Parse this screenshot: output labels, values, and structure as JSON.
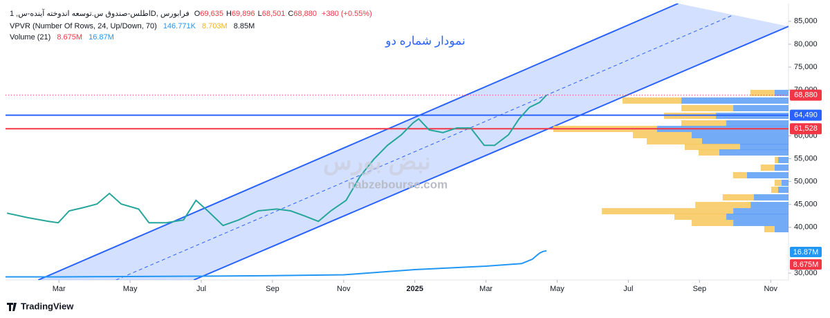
{
  "chart_data": {
    "type": "line",
    "symbol": "اطلس-صندوق س.توسعه اندوخته آینده-س, 1D, فرابورس",
    "ohlc": [
      {
        "key": "O",
        "value": "69,635"
      },
      {
        "key": "H",
        "value": "69,896"
      },
      {
        "key": "L",
        "value": "68,501"
      },
      {
        "key": "C",
        "value": "68,880"
      }
    ],
    "change": "+380 (+0.55%)",
    "vpvr_title": "VPVR (Number Of Rows, 24, Up/Down, 70)",
    "vpvr_values": [
      "146.771K",
      "8.703M",
      "8.85M"
    ],
    "volume_title": "Volume (21)",
    "volume_values": [
      "8.675M",
      "16.87M"
    ],
    "annotation": "نمودار شماره دو",
    "watermark": "nabzebourse.com",
    "watermark_logo": "نبض بورس",
    "brand": "TradingView",
    "xlim": [
      -1.5,
      20.5
    ],
    "xticks": [
      {
        "value": 0,
        "label": "Mar"
      },
      {
        "value": 2,
        "label": "May"
      },
      {
        "value": 4,
        "label": "Jul"
      },
      {
        "value": 6,
        "label": "Sep"
      },
      {
        "value": 8,
        "label": "Nov"
      },
      {
        "value": 10,
        "label": "2025"
      },
      {
        "value": 12,
        "label": "Mar"
      },
      {
        "value": 14,
        "label": "May"
      },
      {
        "value": 16,
        "label": "Jul"
      },
      {
        "value": 18,
        "label": "Sep"
      },
      {
        "value": 20,
        "label": "Nov"
      }
    ],
    "ylim": [
      28500,
      88900
    ],
    "yticks": [
      {
        "value": 30000,
        "label": "30,000"
      },
      {
        "value": 40000,
        "label": "40,000"
      },
      {
        "value": 45000,
        "label": "45,000"
      },
      {
        "value": 50000,
        "label": "50,000"
      },
      {
        "value": 55000,
        "label": "55,000"
      },
      {
        "value": 60000,
        "label": "60,000"
      },
      {
        "value": 70000,
        "label": "70,000"
      },
      {
        "value": 75000,
        "label": "75,000"
      },
      {
        "value": 80000,
        "label": "80,000"
      },
      {
        "value": 85000,
        "label": "85,000"
      }
    ],
    "y2lim": [
      0,
      160
    ],
    "series": [
      {
        "name": "Close",
        "color": "#26a69a",
        "x": [
          -1.46,
          -0.87,
          -0.29,
          -0.02,
          0.29,
          0.68,
          1.07,
          1.42,
          1.75,
          2.24,
          2.53,
          3.01,
          3.5,
          3.85,
          4.18,
          4.61,
          5.05,
          5.6,
          6.12,
          6.51,
          6.9,
          7.29,
          7.64,
          8.07,
          8.46,
          8.85,
          9.23,
          9.62,
          9.95,
          10.11,
          10.4,
          10.79,
          11.18,
          11.57,
          11.95,
          12.24,
          12.63,
          12.93,
          13.22,
          13.51,
          13.7
        ],
        "values": [
          43100,
          42100,
          41300,
          41000,
          43600,
          44300,
          45100,
          47400,
          45100,
          44000,
          41000,
          41000,
          41600,
          45900,
          43600,
          40400,
          41600,
          43600,
          44000,
          43600,
          42500,
          41300,
          43600,
          45900,
          51100,
          54900,
          57900,
          60200,
          62800,
          63700,
          61300,
          60700,
          61700,
          61700,
          57900,
          57900,
          60200,
          63700,
          66200,
          67300,
          68880
        ]
      },
      {
        "name": "Volume MA",
        "color": "#2196f3",
        "axis": "y2",
        "x": [
          -1.5,
          0,
          2,
          4,
          6,
          8,
          9,
          10,
          11,
          12,
          13,
          13.3,
          13.5,
          13.6,
          13.7
        ],
        "values": [
          1.8,
          1.8,
          2.0,
          2.2,
          2.5,
          3,
          4.5,
          6,
          7,
          8,
          9.5,
          12,
          15.5,
          16.5,
          16.87
        ]
      }
    ],
    "channel": {
      "color": "#2962ff",
      "fill": "#2962ff",
      "upper": {
        "x": [
          -0.58,
          17.4
        ],
        "y": [
          28500,
          88900
        ]
      },
      "lower": {
        "x": [
          3.79,
          20.5
        ],
        "y": [
          28500,
          83900
        ]
      }
    },
    "levels": [
      {
        "value": 64490,
        "label": "64,490",
        "color": "#2962ff"
      },
      {
        "value": 61528,
        "label": "61,528",
        "color": "#f23645"
      }
    ],
    "last_price": {
      "value": 68880,
      "label": "68,880",
      "color": "#f23645"
    },
    "volume_profile": {
      "up_color": "#5b9cf6",
      "down_color": "#f7c85a",
      "prices": [
        69280,
        67610,
        65950,
        64290,
        62630,
        61420,
        60060,
        58700,
        57490,
        56280,
        54620,
        52960,
        51300,
        49640,
        48130,
        46470,
        44800,
        43440,
        42240,
        40880,
        39520
      ],
      "up": [
        0.66,
        5.08,
        2.62,
        3.44,
        2.95,
        6.23,
        4.59,
        4.1,
        2.3,
        3.28,
        0.49,
        0.66,
        1.97,
        0.33,
        0.49,
        1.64,
        1.8,
        2.62,
        2.95,
        2.62,
        0.66
      ],
      "down": [
        1.15,
        2.79,
        2.46,
        2.46,
        2.13,
        4.92,
        2.79,
        2.62,
        2.62,
        0.98,
        0.16,
        0.66,
        0.66,
        0.33,
        0.33,
        1.48,
        2.62,
        6.23,
        2.46,
        1.97,
        0.49
      ]
    }
  }
}
